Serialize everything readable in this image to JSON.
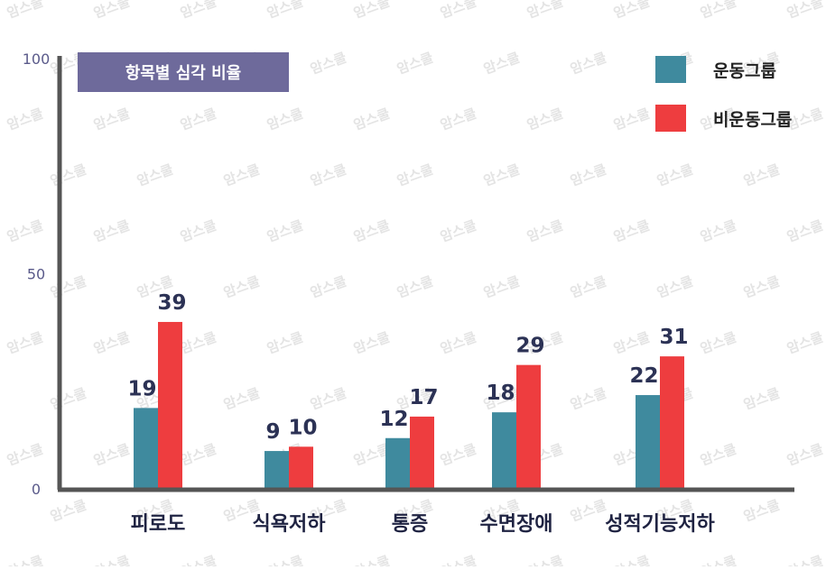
{
  "chart_data": {
    "type": "bar",
    "title": "항목별 심각 비율",
    "categories": [
      "피로도",
      "식욕저하",
      "통증",
      "수면장애",
      "성적기능저하"
    ],
    "series": [
      {
        "name": "운동그룹",
        "color": "#3f8a9e",
        "values": [
          19,
          9,
          12,
          18,
          22
        ]
      },
      {
        "name": "비운동그룹",
        "color": "#ee3d3f",
        "values": [
          39,
          10,
          17,
          29,
          31
        ]
      }
    ],
    "ylim": [
      0,
      100
    ],
    "yticks": [
      "0",
      "50",
      "100"
    ],
    "grid": false,
    "legend": "top-right",
    "watermark": "암스쿨"
  },
  "colors": {
    "title_background": "#6e6a9b",
    "axis": "#555555",
    "tick_label": "#5a5a8a",
    "watermark": "#e4e4e4"
  }
}
